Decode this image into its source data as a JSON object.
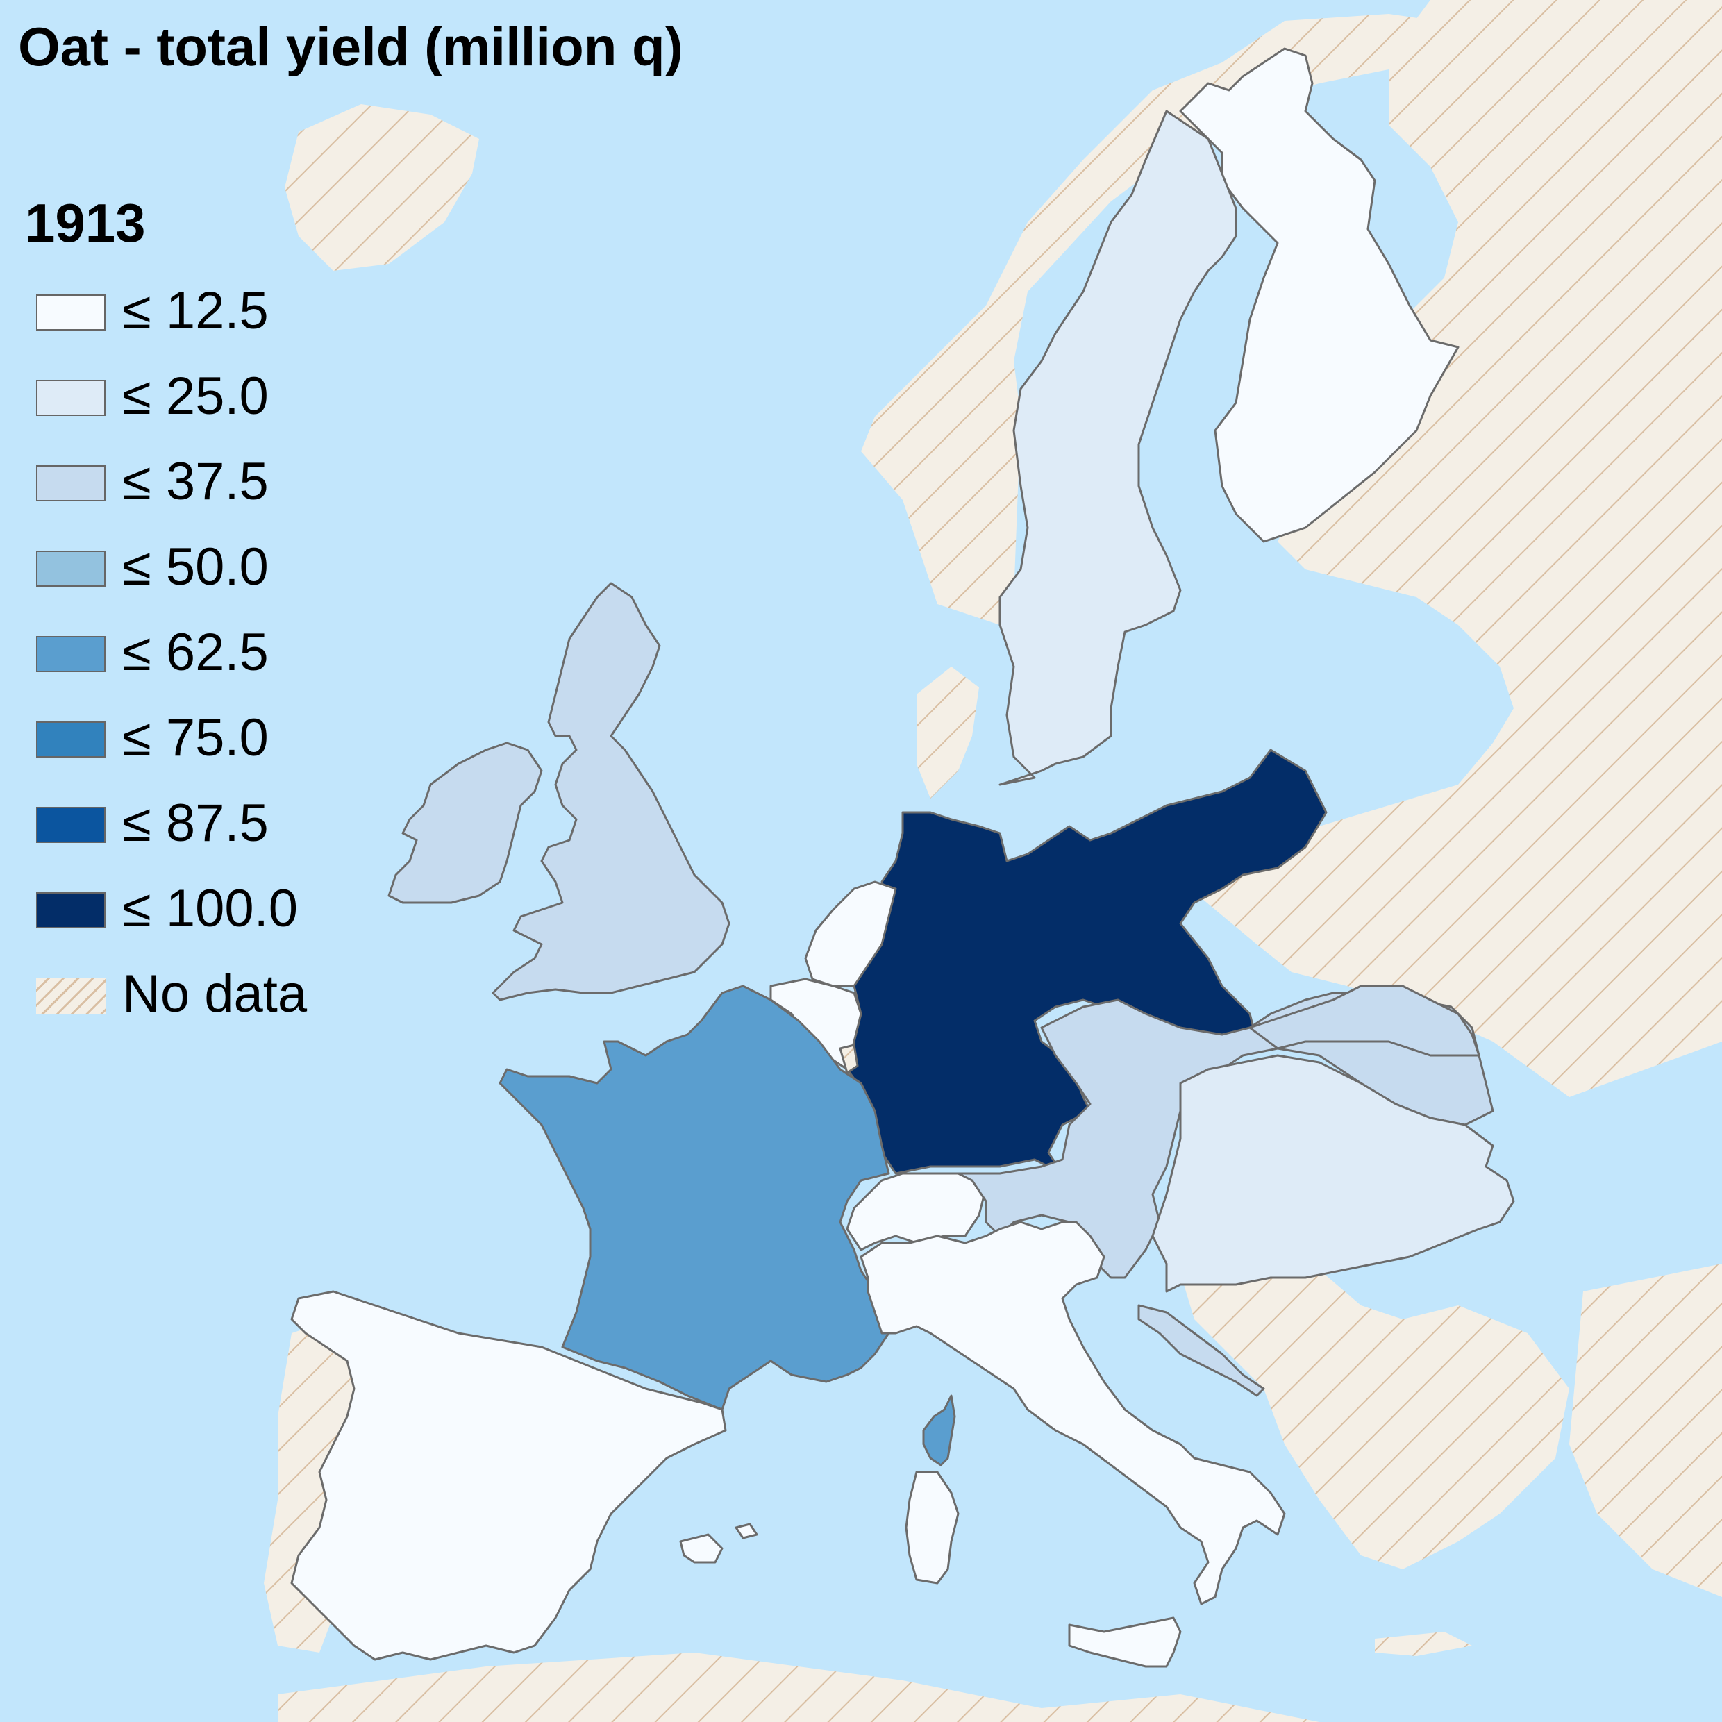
{
  "title": "Oat - total yield (million q)",
  "year": "1913",
  "colors": {
    "sea": "#c2e6fc",
    "no_data_fill": "#f4efe6",
    "no_data_hatch": "#d9bfa3",
    "border": "#6b6b6b"
  },
  "legend": [
    {
      "label": "≤ 12.5",
      "color": "#f7fbff"
    },
    {
      "label": "≤ 25.0",
      "color": "#deebf7"
    },
    {
      "label": "≤ 37.5",
      "color": "#c6dbef"
    },
    {
      "label": "≤ 50.0",
      "color": "#93c2df"
    },
    {
      "label": "≤ 62.5",
      "color": "#5a9ecf"
    },
    {
      "label": "≤ 75.0",
      "color": "#3182bd"
    },
    {
      "label": "≤ 87.5",
      "color": "#0b559f"
    },
    {
      "label": "≤ 100.0",
      "color": "#032d68"
    },
    {
      "label": "No data",
      "color": "hatch"
    }
  ],
  "regions": [
    {
      "name": "Germany",
      "class": "≤ 100.0"
    },
    {
      "name": "France",
      "class": "≤ 62.5"
    },
    {
      "name": "Corsica",
      "class": "≤ 62.5"
    },
    {
      "name": "United Kingdom",
      "class": "≤ 37.5"
    },
    {
      "name": "Ireland",
      "class": "≤ 37.5"
    },
    {
      "name": "Austria",
      "class": "≤ 37.5"
    },
    {
      "name": "Dalmatia",
      "class": "≤ 37.5"
    },
    {
      "name": "Galicia",
      "class": "≤ 37.5"
    },
    {
      "name": "Sweden",
      "class": "≤ 25.0"
    },
    {
      "name": "Hungary",
      "class": "≤ 25.0"
    },
    {
      "name": "Finland",
      "class": "≤ 12.5"
    },
    {
      "name": "Netherlands",
      "class": "≤ 12.5"
    },
    {
      "name": "Belgium",
      "class": "≤ 12.5"
    },
    {
      "name": "Switzerland",
      "class": "≤ 12.5"
    },
    {
      "name": "Italy",
      "class": "≤ 12.5"
    },
    {
      "name": "Sardinia",
      "class": "≤ 12.5"
    },
    {
      "name": "Sicily",
      "class": "≤ 12.5"
    },
    {
      "name": "Spain",
      "class": "≤ 12.5"
    },
    {
      "name": "Balearic Islands",
      "class": "≤ 12.5"
    }
  ]
}
